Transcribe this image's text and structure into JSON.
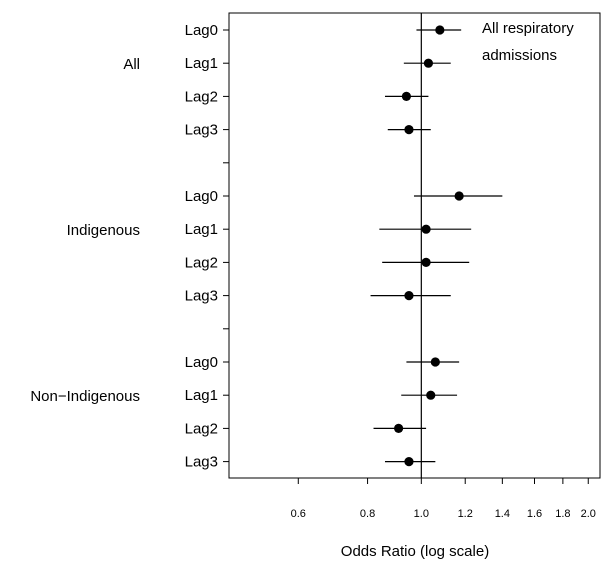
{
  "chart_data": {
    "type": "forest",
    "xlabel": "Odds Ratio (log scale)",
    "x_scale": "log",
    "xlim": [
      0.45,
      2.1
    ],
    "x_ticks": [
      0.6,
      0.8,
      1.0,
      1.2,
      1.4,
      1.6,
      1.8,
      2.0
    ],
    "x_tick_labels": [
      "0.6",
      "0.8",
      "1.0",
      "1.2",
      "1.4",
      "1.6",
      "1.8",
      "2.0"
    ],
    "reference_line": 1.0,
    "annotation": [
      "All respiratory",
      "admissions"
    ],
    "groups": [
      {
        "label": "All",
        "rows": [
          {
            "label": "Lag0",
            "or": 1.08,
            "lower": 0.98,
            "upper": 1.18
          },
          {
            "label": "Lag1",
            "or": 1.03,
            "lower": 0.93,
            "upper": 1.13
          },
          {
            "label": "Lag2",
            "or": 0.94,
            "lower": 0.86,
            "upper": 1.03
          },
          {
            "label": "Lag3",
            "or": 0.95,
            "lower": 0.87,
            "upper": 1.04
          }
        ]
      },
      {
        "label": "Indigenous",
        "rows": [
          {
            "label": "Lag0",
            "or": 1.17,
            "lower": 0.97,
            "upper": 1.4
          },
          {
            "label": "Lag1",
            "or": 1.02,
            "lower": 0.84,
            "upper": 1.23
          },
          {
            "label": "Lag2",
            "or": 1.02,
            "lower": 0.85,
            "upper": 1.22
          },
          {
            "label": "Lag3",
            "or": 0.95,
            "lower": 0.81,
            "upper": 1.13
          }
        ]
      },
      {
        "label": "Non−Indigenous",
        "rows": [
          {
            "label": "Lag0",
            "or": 1.06,
            "lower": 0.94,
            "upper": 1.17
          },
          {
            "label": "Lag1",
            "or": 1.04,
            "lower": 0.92,
            "upper": 1.16
          },
          {
            "label": "Lag2",
            "or": 0.91,
            "lower": 0.82,
            "upper": 1.02
          },
          {
            "label": "Lag3",
            "or": 0.95,
            "lower": 0.86,
            "upper": 1.06
          }
        ]
      }
    ]
  }
}
